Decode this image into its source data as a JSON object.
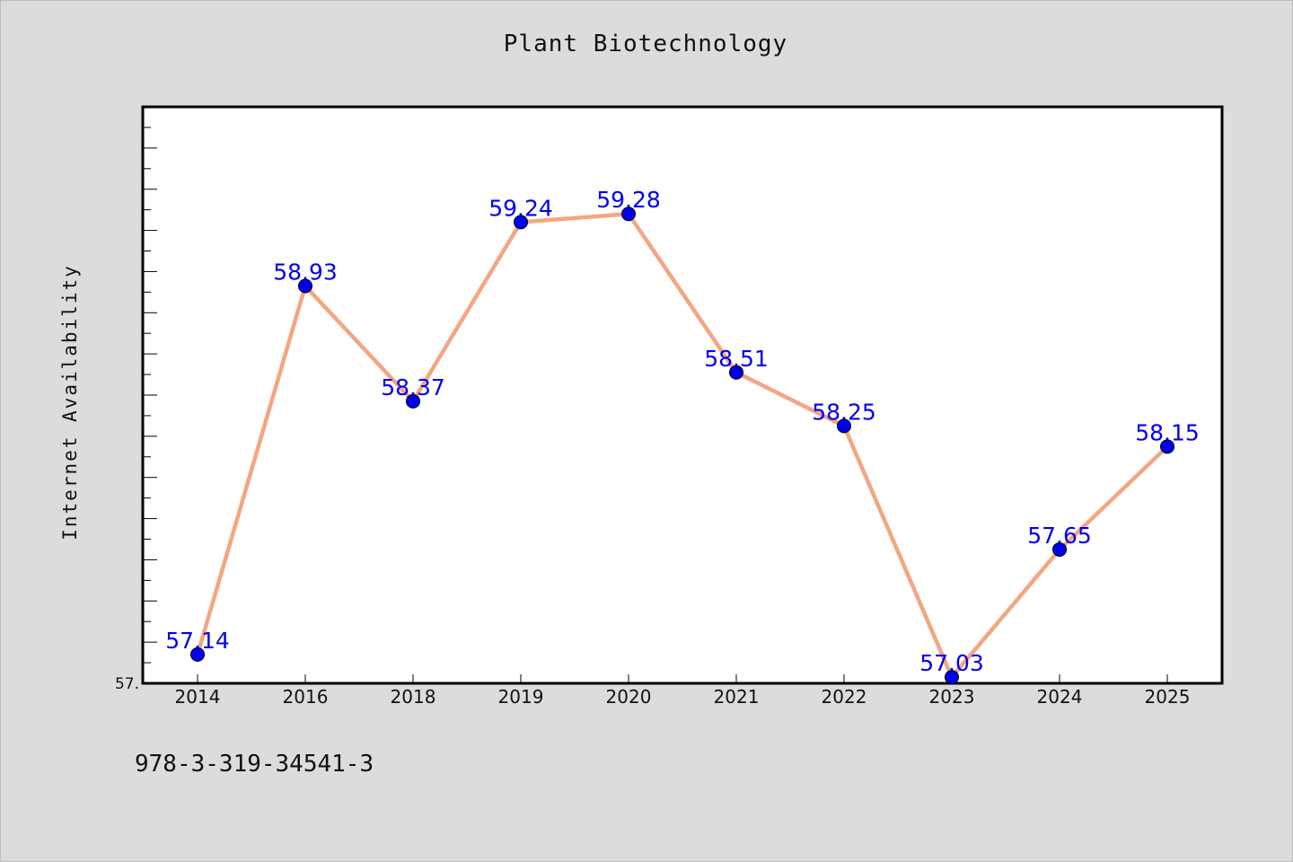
{
  "chart_data": {
    "type": "line",
    "title": "Plant Biotechnology",
    "xlabel": "",
    "ylabel": "Internet Availability",
    "categories": [
      "2014",
      "2016",
      "2018",
      "2019",
      "2020",
      "2021",
      "2022",
      "2023",
      "2024",
      "2025"
    ],
    "series": [
      {
        "values": [
          57.14,
          58.93,
          58.37,
          59.24,
          59.28,
          58.51,
          58.25,
          57.03,
          57.65,
          58.15
        ],
        "data_labels": [
          "57.14",
          "58.93",
          "58.37",
          "59.24",
          "59.28",
          "58.51",
          "58.25",
          "57.03",
          "57.65",
          "58.15"
        ],
        "line_color": "#f4a582",
        "marker_color": "#0000ee"
      }
    ],
    "ylim": [
      57.0,
      59.8
    ],
    "ytick_label": "57.",
    "grid": false,
    "legend": "none"
  },
  "footer_text": "978-3-319-34541-3",
  "colors": {
    "background": "#dcdcdc",
    "plot_area": "#ffffff",
    "line": "#f4a582",
    "marker": "#0000ee",
    "data_label": "#0000ee"
  }
}
